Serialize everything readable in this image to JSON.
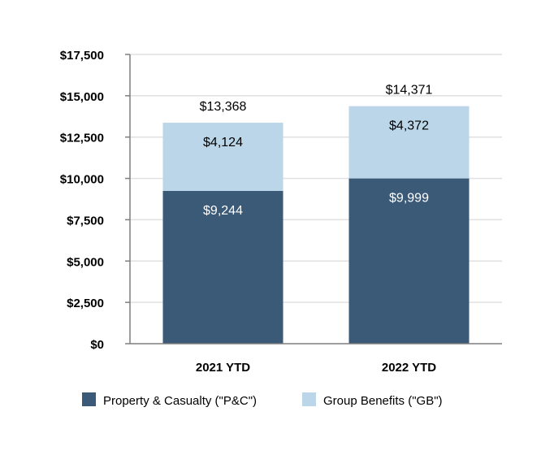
{
  "chart_data": {
    "type": "bar",
    "stacked": true,
    "categories": [
      "2021 YTD",
      "2022 YTD"
    ],
    "series": [
      {
        "name": "Property & Casualty (\"P&C\")",
        "values": [
          9244,
          9999
        ],
        "labels": [
          "$9,244",
          "$9,999"
        ],
        "color": "#3b5a78",
        "label_color": "#ffffff"
      },
      {
        "name": "Group Benefits (\"GB\")",
        "values": [
          4124,
          4372
        ],
        "labels": [
          "$4,124",
          "$4,372"
        ],
        "color": "#bad6e8",
        "label_color": "#000000"
      }
    ],
    "totals": [
      13368,
      14371
    ],
    "total_labels": [
      "$13,368",
      "$14,371"
    ],
    "ylim": [
      0,
      17500
    ],
    "yticks": [
      0,
      2500,
      5000,
      7500,
      10000,
      12500,
      15000,
      17500
    ],
    "ytick_labels": [
      "$0",
      "$2,500",
      "$5,000",
      "$7,500",
      "$10,000",
      "$12,500",
      "$15,000",
      "$17,500"
    ],
    "grid": true,
    "legend_position": "bottom"
  }
}
